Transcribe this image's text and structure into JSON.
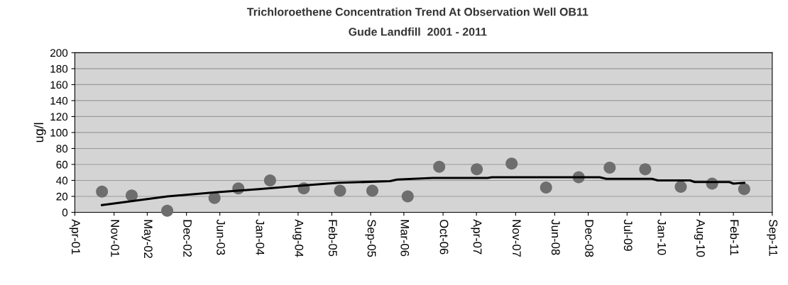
{
  "chart_data": {
    "type": "scatter",
    "title": "Trichloroethene Concentration Trend At Observation Well OB11",
    "subtitle": "Gude Landfill  2001 - 2011",
    "ylabel": "ug/l",
    "series": [
      {
        "color": "#6e6e6e",
        "marker": "circle",
        "x": [
          "2001-08-27",
          "2002-02-05",
          "2002-08-18",
          "2003-05-03",
          "2003-09-10",
          "2004-03-01",
          "2004-09-01",
          "2005-03-18",
          "2005-09-10",
          "2006-03-22",
          "2006-09-10",
          "2007-04-03",
          "2007-10-10",
          "2008-04-15",
          "2008-10-10",
          "2009-03-28",
          "2009-10-08",
          "2010-04-20",
          "2010-10-08",
          "2011-04-01"
        ],
        "values": [
          26,
          21,
          2,
          18,
          30,
          40,
          30,
          27,
          27,
          20,
          57,
          54,
          61,
          31,
          44,
          56,
          54,
          32,
          36,
          29
        ]
      },
      {
        "type": "line",
        "color": "#000000",
        "marker": "none",
        "line_style": "solid",
        "x": [
          "2001-08-27",
          "2002-08-20",
          "2003-05-09",
          "2004-01-01",
          "2004-09-15",
          "2005-03-15",
          "2005-12-15",
          "2006-01-24",
          "2006-08-05",
          "2007-06-01",
          "2007-06-25",
          "2009-02-01",
          "2009-03-10",
          "2009-11-15",
          "2009-12-15",
          "2010-06-10",
          "2010-07-05",
          "2011-01-10",
          "2011-02-01",
          "2011-04-01"
        ],
        "values": [
          9,
          20,
          25,
          29,
          34,
          37,
          39,
          41,
          43,
          43,
          44,
          44,
          42,
          42,
          40,
          40,
          38,
          38,
          36,
          37
        ]
      }
    ],
    "xlim": [
      "2001-04-01",
      "2011-09-01"
    ],
    "xticks": [
      {
        "value": "2001-04-01",
        "label": "Apr-01"
      },
      {
        "value": "2001-11-01",
        "label": "Nov-01"
      },
      {
        "value": "2002-05-01",
        "label": "May-02"
      },
      {
        "value": "2002-12-01",
        "label": "Dec-02"
      },
      {
        "value": "2003-06-01",
        "label": "Jun-03"
      },
      {
        "value": "2004-01-01",
        "label": "Jan-04"
      },
      {
        "value": "2004-08-01",
        "label": "Aug-04"
      },
      {
        "value": "2005-02-01",
        "label": "Feb-05"
      },
      {
        "value": "2005-09-01",
        "label": "Sep-05"
      },
      {
        "value": "2006-03-01",
        "label": "Mar-06"
      },
      {
        "value": "2006-10-01",
        "label": "Oct-06"
      },
      {
        "value": "2007-04-01",
        "label": "Apr-07"
      },
      {
        "value": "2007-11-01",
        "label": "Nov-07"
      },
      {
        "value": "2008-06-01",
        "label": "Jun-08"
      },
      {
        "value": "2008-12-01",
        "label": "Dec-08"
      },
      {
        "value": "2009-07-01",
        "label": "Jul-09"
      },
      {
        "value": "2010-01-01",
        "label": "Jan-10"
      },
      {
        "value": "2010-08-01",
        "label": "Aug-10"
      },
      {
        "value": "2011-02-01",
        "label": "Feb-11"
      },
      {
        "value": "2011-09-01",
        "label": "Sep-11"
      }
    ],
    "ylim": [
      0,
      200
    ],
    "yticks": [
      0,
      20,
      40,
      60,
      80,
      100,
      120,
      140,
      160,
      180,
      200
    ],
    "grid": "y",
    "legend": false
  }
}
